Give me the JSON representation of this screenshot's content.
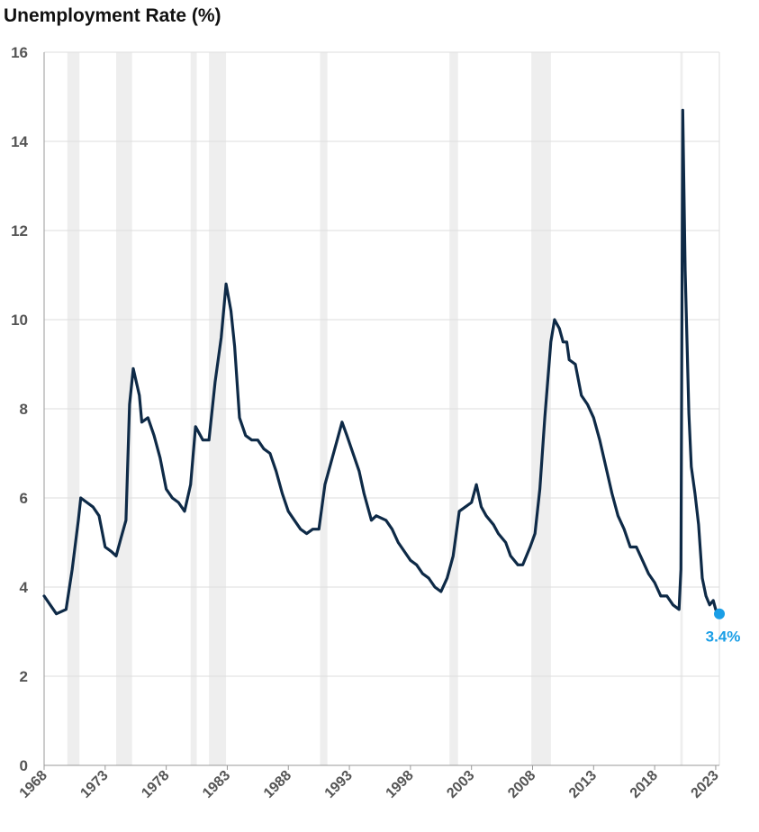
{
  "chart_data": {
    "type": "line",
    "title": "Unemployment Rate (%)",
    "xlabel": "",
    "ylabel": "",
    "xlim": [
      1968,
      2023.3
    ],
    "ylim": [
      0,
      16
    ],
    "y_ticks": [
      0,
      2,
      4,
      6,
      8,
      10,
      12,
      14,
      16
    ],
    "x_ticks": [
      "1968",
      "1973",
      "1978",
      "1983",
      "1988",
      "1993",
      "1998",
      "2003",
      "2008",
      "2013",
      "2018",
      "2023"
    ],
    "grid": true,
    "legend": "none",
    "recessions": [
      [
        1969.9,
        1970.9
      ],
      [
        1973.9,
        1975.2
      ],
      [
        1980.0,
        1980.5
      ],
      [
        1981.5,
        1982.9
      ],
      [
        1990.6,
        1991.2
      ],
      [
        2001.2,
        2001.9
      ],
      [
        2007.9,
        2009.5
      ],
      [
        2020.1,
        2020.3
      ]
    ],
    "series": [
      {
        "color": "#0e2a47",
        "points": [
          [
            1968.0,
            3.8
          ],
          [
            1968.5,
            3.6
          ],
          [
            1969.0,
            3.4
          ],
          [
            1969.8,
            3.5
          ],
          [
            1970.3,
            4.4
          ],
          [
            1970.8,
            5.5
          ],
          [
            1971.0,
            6.0
          ],
          [
            1971.5,
            5.9
          ],
          [
            1972.0,
            5.8
          ],
          [
            1972.5,
            5.6
          ],
          [
            1973.0,
            4.9
          ],
          [
            1973.5,
            4.8
          ],
          [
            1973.9,
            4.7
          ],
          [
            1974.3,
            5.1
          ],
          [
            1974.7,
            5.5
          ],
          [
            1975.0,
            8.1
          ],
          [
            1975.3,
            8.9
          ],
          [
            1975.8,
            8.3
          ],
          [
            1976.0,
            7.7
          ],
          [
            1976.5,
            7.8
          ],
          [
            1977.0,
            7.4
          ],
          [
            1977.5,
            6.9
          ],
          [
            1978.0,
            6.2
          ],
          [
            1978.5,
            6.0
          ],
          [
            1979.0,
            5.9
          ],
          [
            1979.5,
            5.7
          ],
          [
            1980.0,
            6.3
          ],
          [
            1980.4,
            7.6
          ],
          [
            1980.8,
            7.4
          ],
          [
            1981.0,
            7.3
          ],
          [
            1981.5,
            7.3
          ],
          [
            1982.0,
            8.6
          ],
          [
            1982.5,
            9.6
          ],
          [
            1982.9,
            10.8
          ],
          [
            1983.3,
            10.2
          ],
          [
            1983.6,
            9.4
          ],
          [
            1984.0,
            7.8
          ],
          [
            1984.5,
            7.4
          ],
          [
            1985.0,
            7.3
          ],
          [
            1985.5,
            7.3
          ],
          [
            1986.0,
            7.1
          ],
          [
            1986.5,
            7.0
          ],
          [
            1987.0,
            6.6
          ],
          [
            1987.5,
            6.1
          ],
          [
            1988.0,
            5.7
          ],
          [
            1988.5,
            5.5
          ],
          [
            1989.0,
            5.3
          ],
          [
            1989.5,
            5.2
          ],
          [
            1990.0,
            5.3
          ],
          [
            1990.5,
            5.3
          ],
          [
            1991.0,
            6.3
          ],
          [
            1991.5,
            6.8
          ],
          [
            1992.0,
            7.3
          ],
          [
            1992.4,
            7.7
          ],
          [
            1992.8,
            7.4
          ],
          [
            1993.3,
            7.0
          ],
          [
            1993.8,
            6.6
          ],
          [
            1994.2,
            6.1
          ],
          [
            1994.8,
            5.5
          ],
          [
            1995.2,
            5.6
          ],
          [
            1996.0,
            5.5
          ],
          [
            1996.5,
            5.3
          ],
          [
            1997.0,
            5.0
          ],
          [
            1997.5,
            4.8
          ],
          [
            1998.0,
            4.6
          ],
          [
            1998.5,
            4.5
          ],
          [
            1999.0,
            4.3
          ],
          [
            1999.5,
            4.2
          ],
          [
            2000.0,
            4.0
          ],
          [
            2000.5,
            3.9
          ],
          [
            2001.0,
            4.2
          ],
          [
            2001.5,
            4.7
          ],
          [
            2002.0,
            5.7
          ],
          [
            2002.5,
            5.8
          ],
          [
            2003.0,
            5.9
          ],
          [
            2003.4,
            6.3
          ],
          [
            2003.8,
            5.8
          ],
          [
            2004.2,
            5.6
          ],
          [
            2004.8,
            5.4
          ],
          [
            2005.2,
            5.2
          ],
          [
            2005.8,
            5.0
          ],
          [
            2006.2,
            4.7
          ],
          [
            2006.8,
            4.5
          ],
          [
            2007.2,
            4.5
          ],
          [
            2007.8,
            4.9
          ],
          [
            2008.2,
            5.2
          ],
          [
            2008.6,
            6.2
          ],
          [
            2009.0,
            7.8
          ],
          [
            2009.5,
            9.5
          ],
          [
            2009.8,
            10.0
          ],
          [
            2010.2,
            9.8
          ],
          [
            2010.5,
            9.5
          ],
          [
            2010.8,
            9.5
          ],
          [
            2011.0,
            9.1
          ],
          [
            2011.5,
            9.0
          ],
          [
            2012.0,
            8.3
          ],
          [
            2012.5,
            8.1
          ],
          [
            2013.0,
            7.8
          ],
          [
            2013.5,
            7.3
          ],
          [
            2014.0,
            6.7
          ],
          [
            2014.5,
            6.1
          ],
          [
            2015.0,
            5.6
          ],
          [
            2015.5,
            5.3
          ],
          [
            2016.0,
            4.9
          ],
          [
            2016.5,
            4.9
          ],
          [
            2017.0,
            4.6
          ],
          [
            2017.5,
            4.3
          ],
          [
            2018.0,
            4.1
          ],
          [
            2018.5,
            3.8
          ],
          [
            2019.0,
            3.8
          ],
          [
            2019.5,
            3.6
          ],
          [
            2020.0,
            3.5
          ],
          [
            2020.15,
            4.4
          ],
          [
            2020.3,
            14.7
          ],
          [
            2020.5,
            11.1
          ],
          [
            2020.8,
            7.9
          ],
          [
            2021.0,
            6.7
          ],
          [
            2021.3,
            6.1
          ],
          [
            2021.6,
            5.4
          ],
          [
            2021.9,
            4.2
          ],
          [
            2022.2,
            3.8
          ],
          [
            2022.5,
            3.6
          ],
          [
            2022.8,
            3.7
          ],
          [
            2023.0,
            3.5
          ],
          [
            2023.3,
            3.4
          ]
        ]
      }
    ],
    "end_point": {
      "x": 2023.3,
      "y": 3.4,
      "label": "3.4%",
      "color": "#1a9ee6"
    }
  }
}
